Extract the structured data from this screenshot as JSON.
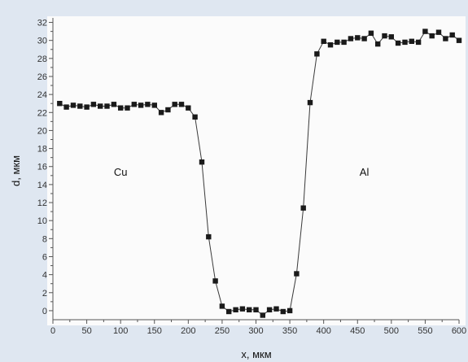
{
  "chart_data": {
    "type": "line",
    "xlabel": "x, мкм",
    "ylabel": "d, мкм",
    "xlim": [
      0,
      600
    ],
    "ylim": [
      -1,
      32.5
    ],
    "xticks": [
      0,
      50,
      100,
      150,
      200,
      250,
      300,
      350,
      400,
      450,
      500,
      550,
      600
    ],
    "yticks": [
      0,
      2,
      4,
      6,
      8,
      10,
      12,
      14,
      16,
      18,
      20,
      22,
      24,
      26,
      28,
      30,
      32
    ],
    "grid": false,
    "annotations": [
      {
        "text": "Cu",
        "x": 100,
        "y": 15
      },
      {
        "text": "Al",
        "x": 460,
        "y": 15
      }
    ],
    "series": [
      {
        "marker": "square",
        "color": "#1a1a1a",
        "x": [
          10,
          20,
          30,
          40,
          50,
          60,
          70,
          80,
          90,
          100,
          110,
          120,
          130,
          140,
          150,
          160,
          170,
          180,
          190,
          200,
          210,
          220,
          230,
          240,
          250,
          260,
          270,
          280,
          290,
          300,
          310,
          320,
          330,
          340,
          350,
          360,
          370,
          380,
          390,
          400,
          410,
          420,
          430,
          440,
          450,
          460,
          470,
          480,
          490,
          500,
          510,
          520,
          530,
          540,
          550,
          560,
          570,
          580,
          590,
          600
        ],
        "y": [
          23.0,
          22.6,
          22.8,
          22.7,
          22.6,
          22.9,
          22.7,
          22.7,
          22.9,
          22.5,
          22.5,
          22.9,
          22.8,
          22.9,
          22.8,
          22.0,
          22.3,
          22.9,
          22.9,
          22.5,
          21.5,
          16.5,
          8.2,
          3.3,
          0.5,
          -0.1,
          0.1,
          0.2,
          0.1,
          0.1,
          -0.5,
          0.1,
          0.2,
          -0.1,
          0.0,
          4.1,
          11.4,
          23.1,
          28.5,
          29.9,
          29.5,
          29.8,
          29.8,
          30.2,
          30.3,
          30.2,
          30.8,
          29.6,
          30.5,
          30.4,
          29.7,
          29.8,
          29.9,
          29.8,
          31.0,
          30.5,
          30.9,
          30.2,
          30.6,
          30.0
        ]
      }
    ]
  }
}
